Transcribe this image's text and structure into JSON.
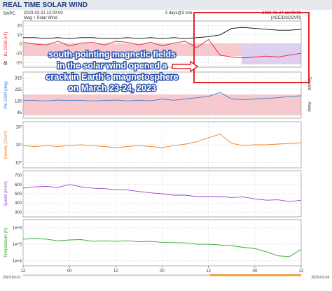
{
  "header": {
    "title": "REAL TIME SOLAR WIND",
    "source": "SWPC",
    "start": "2023-03-21 12:00:00",
    "product": "Mag + Solar Wind",
    "span": "3 days@3 min",
    "end": "2023-03-24 12:00:00",
    "spacecraft": "[ACE/DSCOVR]"
  },
  "annotation": [
    "south-pointing magnetic fields",
    "in the solar wind opened a",
    "crack in Earth's magnetosphere",
    "on March 23-24, 2023"
  ],
  "footer_dates": [
    "2023-03-21",
    "2023-03-24"
  ],
  "chart_data": [
    {
      "type": "line",
      "x": [
        0,
        3,
        6,
        9,
        12,
        15,
        18,
        21,
        24,
        27,
        30,
        33,
        36,
        39,
        42,
        45,
        48,
        51,
        54,
        57,
        60,
        63,
        66,
        69,
        72
      ],
      "xlim": [
        0,
        72
      ],
      "series": [
        {
          "name": "Bt",
          "color": "#000000",
          "values": [
            7,
            7,
            6,
            7,
            6,
            7,
            7,
            6,
            6,
            7,
            6,
            7,
            6,
            7,
            6,
            7,
            8,
            10,
            17,
            18,
            17,
            16,
            15,
            15,
            16
          ]
        },
        {
          "name": "Bz GSM (nT)",
          "color": "#e8262a",
          "values": [
            2,
            0,
            -1,
            3,
            -2,
            1,
            2,
            -1,
            3,
            2,
            -1,
            2,
            -2,
            1,
            3,
            -4,
            5,
            -12,
            -14,
            -15,
            -14,
            -13,
            -14,
            -12,
            -10
          ]
        }
      ],
      "ylim": [
        -25,
        25
      ],
      "yticks": [
        -20,
        -10,
        0,
        10,
        20
      ],
      "grid": true
    },
    {
      "type": "line",
      "x": [
        0,
        3,
        6,
        9,
        12,
        15,
        18,
        21,
        24,
        27,
        30,
        33,
        36,
        39,
        42,
        45,
        48,
        51,
        54,
        57,
        60,
        63,
        66,
        69,
        72
      ],
      "xlim": [
        0,
        72
      ],
      "ylabel": "Phi GSM (deg)",
      "color": "#3b7ec9",
      "values": [
        140,
        138,
        135,
        142,
        138,
        140,
        135,
        138,
        142,
        135,
        140,
        136,
        150,
        140,
        150,
        160,
        170,
        200,
        150,
        145,
        150,
        155,
        160,
        170,
        175
      ],
      "ylim": [
        0,
        360
      ],
      "yticks": [
        45,
        135,
        225,
        315
      ],
      "grid": true,
      "right_labels": [
        "Toward",
        "Away"
      ]
    },
    {
      "type": "line",
      "x": [
        0,
        3,
        6,
        9,
        12,
        15,
        18,
        21,
        24,
        27,
        30,
        33,
        36,
        39,
        42,
        45,
        48,
        51,
        54,
        57,
        60,
        63,
        66,
        69,
        72
      ],
      "xlim": [
        0,
        72
      ],
      "ylabel": "Density (1/cm³)",
      "color": "#f07f22",
      "values": [
        9,
        8,
        9,
        8,
        9,
        10,
        9,
        8,
        7,
        8,
        9,
        8,
        7,
        9,
        11,
        15,
        25,
        40,
        12,
        9,
        10,
        10,
        11,
        12,
        13
      ],
      "ylim": [
        0.5,
        200
      ],
      "log_y": true,
      "yticks": [
        {
          "value": 1,
          "label": "10⁰"
        },
        {
          "value": 10,
          "label": "10¹"
        },
        {
          "value": 100,
          "label": "10²"
        }
      ],
      "grid": true
    },
    {
      "type": "line",
      "x": [
        0,
        3,
        6,
        9,
        12,
        15,
        18,
        21,
        24,
        27,
        30,
        33,
        36,
        39,
        42,
        45,
        48,
        51,
        54,
        57,
        60,
        63,
        66,
        69,
        72
      ],
      "xlim": [
        0,
        72
      ],
      "ylabel": "Speed (km/s)",
      "color": "#9a3fd0",
      "values": [
        560,
        575,
        580,
        570,
        600,
        575,
        560,
        555,
        545,
        540,
        525,
        510,
        500,
        485,
        485,
        470,
        470,
        470,
        460,
        465,
        445,
        430,
        435,
        415,
        430
      ],
      "ylim": [
        250,
        750
      ],
      "yticks": [
        300,
        400,
        500,
        600,
        700
      ],
      "grid": true
    },
    {
      "type": "line",
      "x": [
        0,
        3,
        6,
        9,
        12,
        15,
        18,
        21,
        24,
        27,
        30,
        33,
        36,
        39,
        42,
        45,
        48,
        51,
        54,
        57,
        60,
        63,
        66,
        69,
        72
      ],
      "xlim": [
        0,
        72
      ],
      "ylabel": "Temperature (K)",
      "color": "#2ca52c",
      "values": [
        200000,
        220000,
        200000,
        160000,
        180000,
        190000,
        150000,
        160000,
        150000,
        160000,
        140000,
        150000,
        130000,
        125000,
        120000,
        100000,
        100000,
        90000,
        80000,
        65000,
        55000,
        35000,
        20000,
        18000,
        50000
      ],
      "ylim": [
        5000,
        3000000
      ],
      "log_y": true,
      "yticks": [
        {
          "value": 10000,
          "label": "1e+4"
        },
        {
          "value": 100000,
          "label": "1e+5"
        },
        {
          "value": 1000000,
          "label": "1e+6"
        }
      ],
      "grid": true,
      "xticks": [
        {
          "value": 0,
          "label": "12"
        },
        {
          "value": 12,
          "label": "00"
        },
        {
          "value": 24,
          "label": "12"
        },
        {
          "value": 36,
          "label": "00"
        },
        {
          "value": 48,
          "label": "12"
        },
        {
          "value": 60,
          "label": "00"
        },
        {
          "value": 72,
          "label": "12"
        }
      ]
    }
  ]
}
